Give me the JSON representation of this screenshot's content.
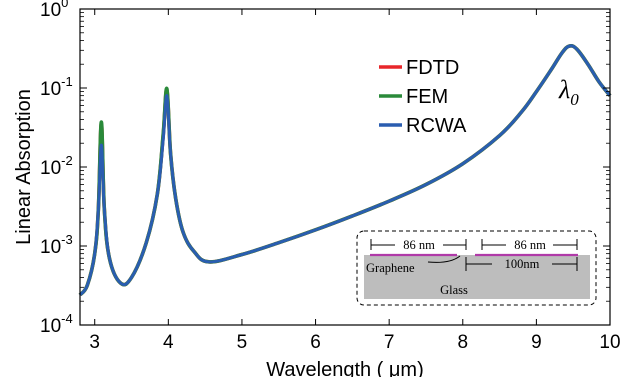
{
  "chart_data": {
    "type": "line",
    "xlabel": "Wavelength ( μm)",
    "ylabel": "Linear Absorption",
    "xlim": [
      2.8,
      10
    ],
    "ylim": [
      0.0001,
      1
    ],
    "yscale": "log",
    "x_ticks": [
      "3",
      "4",
      "5",
      "6",
      "7",
      "8",
      "9",
      "10"
    ],
    "y_ticks": [
      {
        "base": "10",
        "exp": "0"
      },
      {
        "base": "10",
        "exp": "-1"
      },
      {
        "base": "10",
        "exp": "-2"
      },
      {
        "base": "10",
        "exp": "-3"
      },
      {
        "base": "10",
        "exp": "-4"
      }
    ],
    "legend_position": "top-right",
    "grid": false,
    "x": [
      2.8,
      2.9,
      3.0,
      3.05,
      3.09,
      3.13,
      3.2,
      3.35,
      3.5,
      3.7,
      3.85,
      3.93,
      3.98,
      4.03,
      4.1,
      4.2,
      4.35,
      4.55,
      5.0,
      5.5,
      6.0,
      6.5,
      7.0,
      7.5,
      8.0,
      8.5,
      8.8,
      9.0,
      9.2,
      9.35,
      9.45,
      9.55,
      9.7,
      9.85,
      10.0
    ],
    "series": [
      {
        "name": "FDTD",
        "color": "#e8262a",
        "values": [
          0.00024,
          0.00032,
          0.0008,
          0.003,
          0.035,
          0.003,
          0.0007,
          0.00034,
          0.0004,
          0.0011,
          0.0045,
          0.025,
          0.095,
          0.015,
          0.004,
          0.0015,
          0.00085,
          0.00063,
          0.00078,
          0.0011,
          0.0016,
          0.0024,
          0.0037,
          0.006,
          0.011,
          0.025,
          0.05,
          0.09,
          0.17,
          0.28,
          0.34,
          0.31,
          0.2,
          0.12,
          0.08
        ]
      },
      {
        "name": "FEM",
        "color": "#2a8a3a",
        "values": [
          0.00024,
          0.00032,
          0.0008,
          0.003,
          0.037,
          0.003,
          0.0007,
          0.00034,
          0.0004,
          0.0011,
          0.0045,
          0.026,
          0.098,
          0.015,
          0.004,
          0.0015,
          0.00085,
          0.00063,
          0.00078,
          0.0011,
          0.0016,
          0.0024,
          0.0037,
          0.006,
          0.011,
          0.025,
          0.05,
          0.09,
          0.17,
          0.28,
          0.34,
          0.31,
          0.2,
          0.12,
          0.08
        ]
      },
      {
        "name": "RCWA",
        "color": "#2a5db0",
        "values": [
          0.00024,
          0.00032,
          0.0008,
          0.003,
          0.019,
          0.003,
          0.0007,
          0.00034,
          0.0004,
          0.0011,
          0.0045,
          0.022,
          0.08,
          0.015,
          0.004,
          0.0015,
          0.00085,
          0.00063,
          0.00078,
          0.0011,
          0.0016,
          0.0024,
          0.0037,
          0.006,
          0.011,
          0.025,
          0.05,
          0.09,
          0.17,
          0.28,
          0.34,
          0.31,
          0.2,
          0.12,
          0.08
        ]
      }
    ],
    "annotation": {
      "symbol": "λ",
      "subscript": "0"
    },
    "inset": {
      "dim_left": "86 nm",
      "dim_right": "86 nm",
      "period": "100nm",
      "graphene_label": "Graphene",
      "substrate_label": "Glass"
    },
    "colors": {
      "substrate": "#bdbdbd",
      "graphene": "#b03aa8"
    }
  }
}
